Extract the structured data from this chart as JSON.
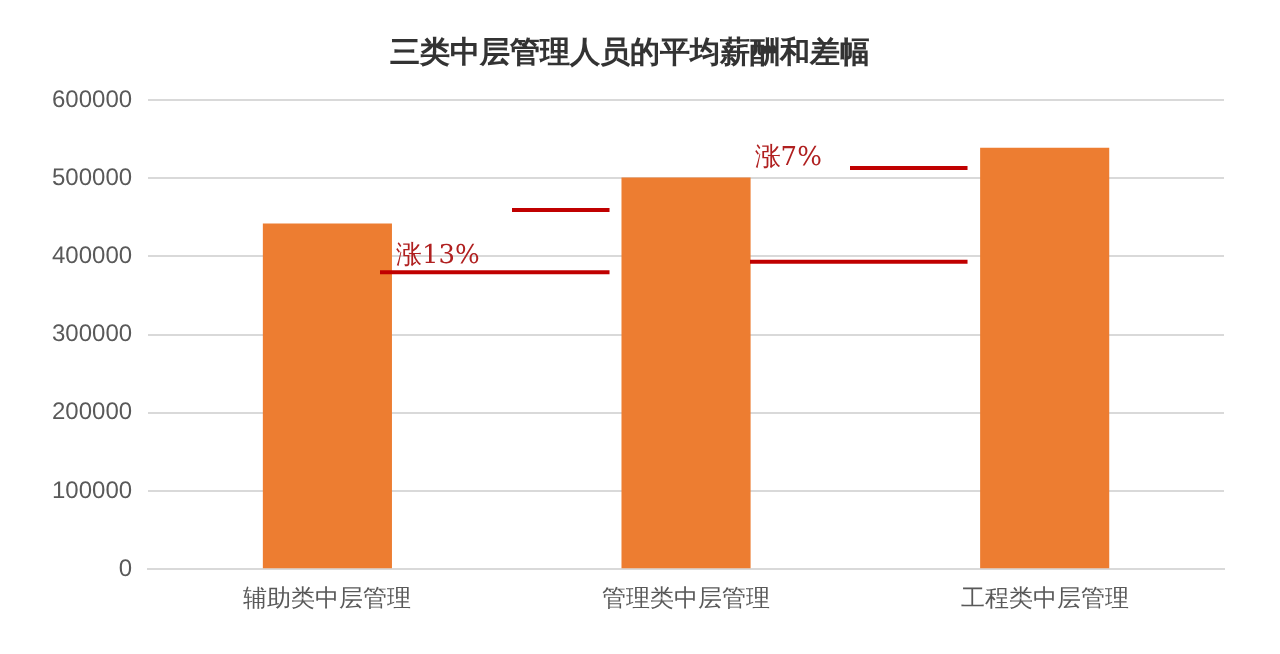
{
  "chart_data": {
    "type": "bar",
    "title": "三类中层管理人员的平均薪酬和差幅",
    "categories": [
      "辅助类中层管理",
      "管理类中层管理",
      "工程类中层管理"
    ],
    "values": [
      442000,
      501000,
      539000
    ],
    "color": "#ed7d31",
    "ylim": [
      0,
      600000
    ],
    "yticks": [
      0,
      100000,
      200000,
      300000,
      400000,
      500000,
      600000
    ],
    "grid": "y",
    "legend": false,
    "annotations": [
      "涨13%",
      "涨7%"
    ]
  }
}
